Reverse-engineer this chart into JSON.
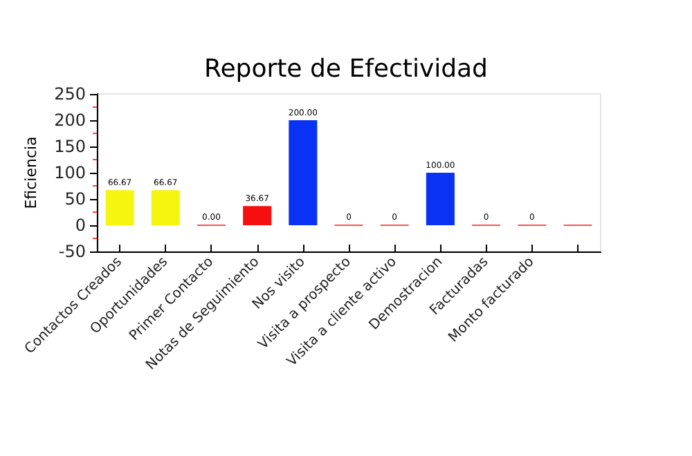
{
  "chart_data": {
    "type": "bar",
    "title": "Reporte de Efectividad",
    "ylabel": "Eficiencia",
    "categories": [
      "Contactos Creados",
      "Oportunidades",
      "Primer Contacto",
      "Notas de Seguimiento",
      "Nos visito",
      "Visita a prospecto",
      "Visita a cliente activo",
      "Demostracion",
      "Facturadas",
      "Monto facturado",
      null
    ],
    "values": [
      66.67,
      66.67,
      0,
      36.67,
      200,
      0,
      0,
      100,
      0,
      0,
      0
    ],
    "colors": [
      "#f5f50f",
      "#f5f50f",
      "#ff5050",
      "#f50f0f",
      "#0a32f5",
      "#ff5050",
      "#ff5050",
      "#0a32f5",
      "#ff5050",
      "#ff5050",
      "#ff5050"
    ],
    "value_labels": [
      "66.67",
      "66.67",
      "0.00",
      "36.67",
      "200.00",
      "0",
      "0",
      "100.00",
      "0",
      "0",
      null
    ],
    "ylim": [
      -50,
      250
    ],
    "yticks": [
      -50,
      0,
      50,
      100,
      150,
      200,
      250
    ],
    "grid": false
  }
}
